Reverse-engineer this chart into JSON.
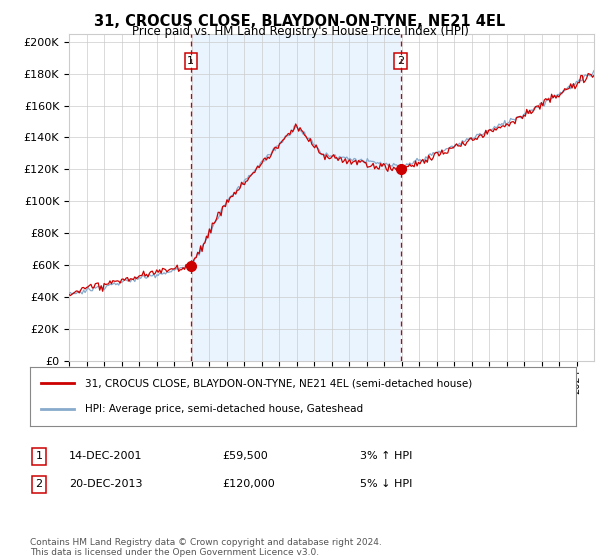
{
  "title": "31, CROCUS CLOSE, BLAYDON-ON-TYNE, NE21 4EL",
  "subtitle": "Price paid vs. HM Land Registry's House Price Index (HPI)",
  "ylabel_ticks": [
    "£0",
    "£20K",
    "£40K",
    "£60K",
    "£80K",
    "£100K",
    "£120K",
    "£140K",
    "£160K",
    "£180K",
    "£200K"
  ],
  "ytick_values": [
    0,
    20000,
    40000,
    60000,
    80000,
    100000,
    120000,
    140000,
    160000,
    180000,
    200000
  ],
  "ylim": [
    0,
    205000
  ],
  "legend_line1": "31, CROCUS CLOSE, BLAYDON-ON-TYNE, NE21 4EL (semi-detached house)",
  "legend_line2": "HPI: Average price, semi-detached house, Gateshead",
  "transaction1_date": "14-DEC-2001",
  "transaction1_price": "£59,500",
  "transaction1_hpi": "3% ↑ HPI",
  "transaction2_date": "20-DEC-2013",
  "transaction2_price": "£120,000",
  "transaction2_hpi": "5% ↓ HPI",
  "footnote": "Contains HM Land Registry data © Crown copyright and database right 2024.\nThis data is licensed under the Open Government Licence v3.0.",
  "line_color_property": "#cc0000",
  "line_color_hpi": "#88aacc",
  "vline_color": "#cc0000",
  "marker_color": "#cc0000",
  "background_color": "#ffffff",
  "grid_color": "#cccccc",
  "shade_color": "#ddeeff",
  "transaction1_x": 2001.96,
  "transaction2_x": 2013.96,
  "transaction1_y": 59500,
  "transaction2_y": 120000,
  "xlim_start": 1995,
  "xlim_end": 2025
}
